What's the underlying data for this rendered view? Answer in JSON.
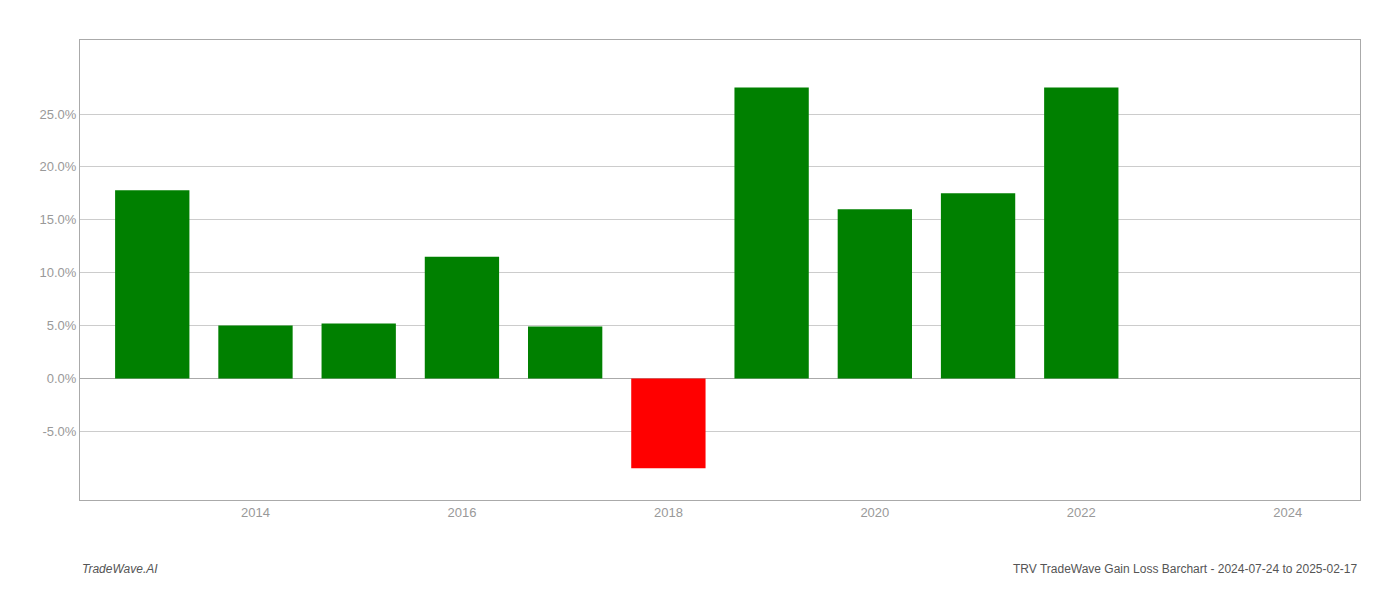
{
  "chart_data": {
    "type": "bar",
    "x": [
      2013,
      2014,
      2015,
      2016,
      2017,
      2018,
      2019,
      2020,
      2021,
      2022
    ],
    "values": [
      0.178,
      0.05,
      0.052,
      0.115,
      0.049,
      -0.085,
      0.275,
      0.16,
      0.175,
      0.275
    ],
    "colors": [
      "#008000",
      "#008000",
      "#008000",
      "#008000",
      "#008000",
      "#ff0000",
      "#008000",
      "#008000",
      "#008000",
      "#008000"
    ],
    "xlim": [
      2012.3,
      2024.7
    ],
    "xticks": [
      2014,
      2016,
      2018,
      2020,
      2022,
      2024
    ],
    "ylim": [
      -0.115,
      0.32
    ],
    "yticks": [
      {
        "value": -0.05,
        "label": "-5.0%"
      },
      {
        "value": 0.0,
        "label": "0.0%"
      },
      {
        "value": 0.05,
        "label": "5.0%"
      },
      {
        "value": 0.1,
        "label": "10.0%"
      },
      {
        "value": 0.15,
        "label": "15.0%"
      },
      {
        "value": 0.2,
        "label": "20.0%"
      },
      {
        "value": 0.25,
        "label": "25.0%"
      }
    ],
    "grid": true,
    "annotations": [
      "TradeWave.AI",
      "TRV TradeWave Gain Loss Barchart - 2024-07-24 to 2025-02-17"
    ]
  }
}
